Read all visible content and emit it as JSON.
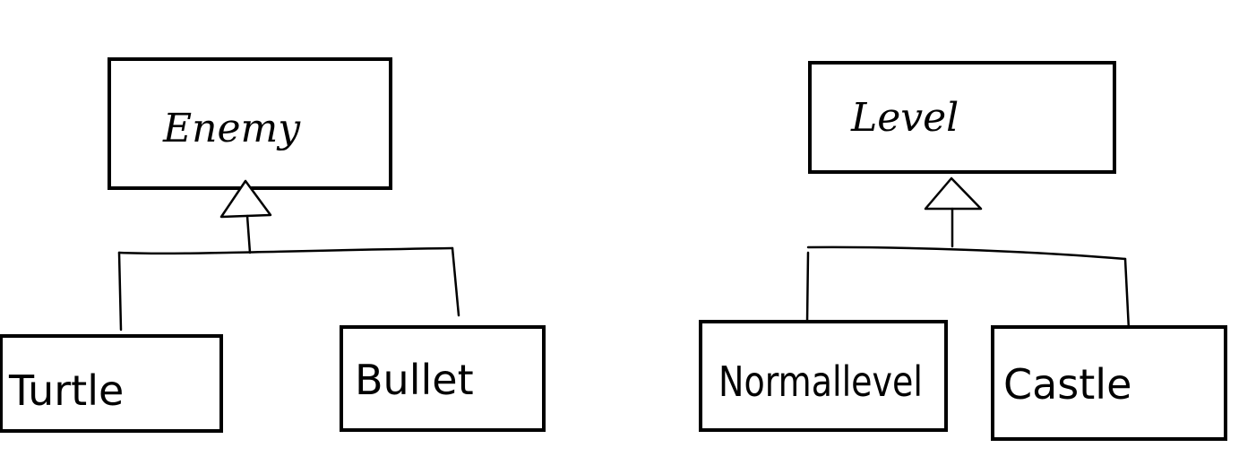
{
  "diagram": {
    "left": {
      "parent": "Enemy",
      "children": [
        "Turtle",
        "Bullet"
      ]
    },
    "right": {
      "parent": "Level",
      "children": [
        "Normallevel",
        "Castle"
      ]
    }
  },
  "colors": {
    "stroke": "#000000",
    "background": "#ffffff"
  }
}
